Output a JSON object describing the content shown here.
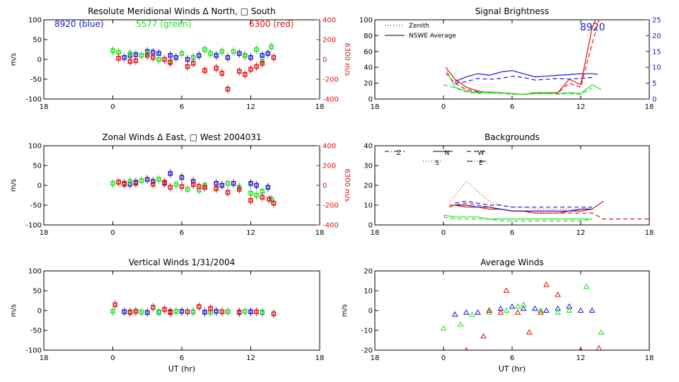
{
  "colors": {
    "blue": "#1a1acc",
    "green": "#22dd22",
    "red": "#dd1111",
    "axis": "#000000"
  },
  "chart_data": [
    {
      "type": "scatter",
      "title": "Resolute Meridional Winds Δ North, □ South",
      "ylabel": "m/s",
      "y2label": "6300 m/s",
      "xlim": [
        -6,
        18
      ],
      "ylim": [
        -100,
        100
      ],
      "y2lim": [
        -400,
        400
      ],
      "xticks": [
        "18",
        "0",
        "6",
        "12",
        "18"
      ],
      "yticks": [
        "100",
        "50",
        "0",
        "-50",
        "-100"
      ],
      "y2ticks": [
        "400",
        "200",
        "0",
        "-200",
        "-400"
      ],
      "annotations": [
        {
          "text": "8920 (blue)",
          "color": "blue"
        },
        {
          "text": "5577 (green)",
          "color": "green"
        },
        {
          "text": "6300 (red)",
          "color": "red"
        }
      ],
      "series": [
        {
          "name": "8920 (blue)",
          "color": "blue",
          "marker": "square",
          "x": [
            1,
            1.5,
            2,
            3,
            3.5,
            4,
            5,
            5.5,
            6.5,
            7,
            7.5,
            9,
            10,
            11,
            11.5,
            12,
            13,
            13.5
          ],
          "y": [
            5,
            10,
            12,
            20,
            18,
            15,
            10,
            5,
            0,
            5,
            10,
            10,
            5,
            15,
            10,
            5,
            10,
            15
          ]
        },
        {
          "name": "5577 (green)",
          "color": "green",
          "marker": "square",
          "x": [
            0,
            0.5,
            1.5,
            2.5,
            3,
            4,
            5,
            6,
            7,
            8,
            8.5,
            9.5,
            10.5,
            11.5,
            12.5,
            13,
            13.8
          ],
          "y": [
            22,
            18,
            15,
            10,
            15,
            0,
            -5,
            15,
            5,
            25,
            15,
            20,
            20,
            10,
            25,
            -5,
            32
          ]
        },
        {
          "name": "6300 (red)",
          "color": "red",
          "marker": "square",
          "x": [
            0.5,
            1.5,
            2,
            3,
            3.5,
            4.5,
            5,
            6.5,
            7,
            8,
            9,
            9.5,
            10,
            11,
            11.5,
            12,
            12.5,
            13,
            14
          ],
          "y": [
            3,
            -5,
            -3,
            10,
            5,
            0,
            -8,
            -18,
            -10,
            -28,
            -22,
            -35,
            -75,
            -30,
            -38,
            -25,
            -18,
            -10,
            5
          ]
        }
      ]
    },
    {
      "type": "line",
      "title": "Signal Brightness",
      "xlim": [
        -6,
        18
      ],
      "ylim": [
        0,
        100
      ],
      "y2lim": [
        0,
        25
      ],
      "xticks": [
        "18",
        "0",
        "6",
        "12",
        "18"
      ],
      "yticks": [
        "100",
        "80",
        "60",
        "40",
        "20",
        "0"
      ],
      "y2ticks": [
        "25",
        "20",
        "15",
        "10",
        "5",
        "0"
      ],
      "legend": [
        {
          "label": "Zenith",
          "style": "dotted"
        },
        {
          "label": "NSWE Average",
          "style": "solid"
        }
      ],
      "annotation": "8920",
      "series": [
        {
          "color": "blue",
          "style": "solid",
          "x": [
            1,
            2,
            3,
            4,
            5,
            6,
            7,
            8,
            9,
            10,
            11,
            12,
            13,
            13.5
          ],
          "y": [
            5.5,
            7,
            8,
            7.5,
            8.5,
            9,
            8,
            7,
            7.2,
            7.5,
            7.7,
            8,
            8,
            7.8
          ]
        },
        {
          "color": "blue",
          "style": "dashed",
          "x": [
            1,
            2,
            3,
            4,
            5,
            6,
            7,
            8,
            9,
            10,
            11,
            12,
            13
          ],
          "y": [
            5,
            5.5,
            6.5,
            6.2,
            6.5,
            7.2,
            6.8,
            6,
            6.2,
            6.5,
            6.3,
            6.5,
            6.8
          ]
        },
        {
          "color": "red",
          "style": "solid",
          "x": [
            0.2,
            1,
            2,
            3,
            4,
            5,
            6,
            7,
            8,
            9,
            10,
            11,
            12,
            13,
            13.6
          ],
          "y": [
            40,
            25,
            15,
            10,
            8,
            8,
            7,
            6,
            8,
            8,
            8,
            25,
            18,
            90,
            110
          ]
        },
        {
          "color": "red",
          "style": "dashed",
          "x": [
            0.2,
            1,
            2,
            3,
            4,
            5,
            6,
            7,
            8,
            9,
            10,
            11,
            12,
            13,
            13.6
          ],
          "y": [
            33,
            20,
            12,
            9,
            8,
            8,
            7,
            6,
            7,
            7,
            8,
            20,
            15,
            70,
            100
          ]
        },
        {
          "color": "green",
          "style": "solid",
          "x": [
            0.3,
            1,
            2,
            3,
            4,
            5,
            6,
            7,
            8,
            9,
            10,
            11,
            12,
            13,
            13.8
          ],
          "y": [
            35,
            15,
            10,
            8,
            9,
            8,
            7,
            6,
            8,
            8,
            7,
            8,
            7,
            18,
            12
          ]
        },
        {
          "color": "green",
          "style": "dashed",
          "x": [
            0,
            1,
            2,
            3,
            4,
            5,
            6,
            7,
            8,
            9,
            10,
            11,
            12,
            13
          ],
          "y": [
            18,
            14,
            9,
            7,
            8,
            7,
            6,
            6,
            7,
            7,
            6,
            7,
            6,
            14
          ]
        }
      ]
    },
    {
      "type": "scatter",
      "title": "Zonal Winds Δ East, □ West 2004031",
      "ylabel": "m/s",
      "y2label": "6300 m/s",
      "xlim": [
        -6,
        18
      ],
      "ylim": [
        -100,
        100
      ],
      "y2lim": [
        -400,
        400
      ],
      "xticks": [
        "18",
        "0",
        "6",
        "12",
        "18"
      ],
      "yticks": [
        "100",
        "50",
        "0",
        "-50",
        "-100"
      ],
      "y2ticks": [
        "400",
        "200",
        "0",
        "-200",
        "-400"
      ],
      "series": [
        {
          "name": "8920",
          "color": "blue",
          "marker": "square",
          "x": [
            1,
            1.5,
            2,
            3,
            3.5,
            4.5,
            5,
            6,
            7,
            8,
            9,
            9.5,
            10.5,
            11,
            12,
            12.5,
            13.5
          ],
          "y": [
            5,
            3,
            8,
            15,
            10,
            5,
            30,
            20,
            10,
            -5,
            5,
            0,
            5,
            -5,
            5,
            0,
            -5
          ]
        },
        {
          "name": "5577",
          "color": "green",
          "marker": "square",
          "x": [
            0,
            0.5,
            1.5,
            2.5,
            4,
            5.5,
            6.5,
            7.5,
            8,
            9,
            10,
            11,
            12,
            12.5,
            13,
            13.8
          ],
          "y": [
            5,
            8,
            10,
            12,
            15,
            2,
            -10,
            -12,
            0,
            -8,
            5,
            -5,
            -20,
            -25,
            -15,
            -35
          ]
        },
        {
          "name": "6300",
          "color": "red",
          "marker": "square",
          "x": [
            0.5,
            1,
            2,
            3.5,
            4.5,
            5,
            6,
            7,
            7.5,
            8,
            9,
            10,
            11,
            12,
            13,
            13.6,
            14
          ],
          "y": [
            8,
            3,
            5,
            3,
            8,
            -5,
            -3,
            2,
            -3,
            -5,
            -8,
            -18,
            -10,
            -38,
            -30,
            -35,
            -45
          ]
        }
      ]
    },
    {
      "type": "line",
      "title": "Backgrounds",
      "xlim": [
        -6,
        18
      ],
      "ylim": [
        0,
        40
      ],
      "xticks": [
        "18",
        "0",
        "6",
        "12",
        "18"
      ],
      "yticks": [
        "40",
        "30",
        "20",
        "10",
        "0"
      ],
      "legend": [
        {
          "label": "Z",
          "style": "dashdot"
        },
        {
          "label": "N",
          "style": "solid"
        },
        {
          "label": "W",
          "style": "dashed"
        },
        {
          "label": "S",
          "style": "dotted"
        },
        {
          "label": "E",
          "style": "dashdotted"
        }
      ],
      "series": [
        {
          "color": "red",
          "style": "dotted",
          "x": [
            0.5,
            1,
            2,
            3,
            4,
            5,
            6,
            7,
            8,
            9,
            10,
            11,
            12,
            13
          ],
          "y": [
            11,
            15,
            22,
            17,
            12,
            10,
            9,
            9,
            8,
            8,
            8,
            8,
            8,
            9
          ]
        },
        {
          "color": "red",
          "style": "solid",
          "x": [
            0.5,
            1,
            2,
            3,
            4,
            5,
            6,
            7,
            8,
            9,
            10,
            11,
            12,
            13,
            14
          ],
          "y": [
            10,
            10,
            9,
            9,
            8,
            8,
            7,
            7,
            6,
            6,
            6,
            7,
            7,
            8,
            12
          ]
        },
        {
          "color": "red",
          "style": "dashed",
          "x": [
            0.5,
            1,
            2,
            3,
            4,
            5,
            6,
            7,
            8,
            9,
            10,
            11,
            12,
            13,
            14,
            15,
            16,
            17,
            18
          ],
          "y": [
            9,
            10,
            11,
            10,
            9,
            8,
            7,
            7,
            6,
            6,
            6,
            6,
            6,
            6,
            3,
            3,
            3,
            3,
            3
          ]
        },
        {
          "color": "blue",
          "style": "dashed",
          "x": [
            1,
            2,
            3,
            4,
            5,
            6,
            7,
            8,
            9,
            10,
            11,
            12,
            13
          ],
          "y": [
            11,
            12,
            11,
            10,
            10,
            9,
            9,
            9,
            9,
            9,
            9,
            9,
            9
          ]
        },
        {
          "color": "blue",
          "style": "solid",
          "x": [
            1,
            2,
            3,
            4,
            5,
            6,
            7,
            8,
            9,
            10,
            11,
            12,
            13
          ],
          "y": [
            10,
            10,
            9,
            9,
            8,
            7,
            7,
            7,
            7,
            7,
            7,
            8,
            8
          ]
        },
        {
          "color": "green",
          "style": "solid",
          "x": [
            0,
            1,
            2,
            3,
            4,
            5,
            6,
            7,
            8,
            9,
            10,
            11,
            12,
            13
          ],
          "y": [
            5,
            4,
            4,
            4,
            3,
            3,
            3,
            3,
            3,
            3,
            3,
            3,
            3,
            3
          ]
        },
        {
          "color": "green",
          "style": "dashed",
          "x": [
            0,
            1,
            2,
            3,
            4,
            5,
            6,
            7,
            8,
            9,
            10,
            11,
            12,
            13
          ],
          "y": [
            4,
            3,
            3,
            3,
            3,
            2,
            2,
            2,
            2,
            2,
            2,
            2,
            2,
            3
          ]
        }
      ]
    },
    {
      "type": "scatter",
      "title": "Vertical Winds 1/31/2004",
      "ylabel": "m/s",
      "xlabel": "UT (hr)",
      "xlim": [
        -6,
        18
      ],
      "ylim": [
        -100,
        100
      ],
      "xticks": [
        "18",
        "0",
        "6",
        "12",
        "18"
      ],
      "yticks": [
        "100",
        "50",
        "0",
        "-50",
        "-100"
      ],
      "series": [
        {
          "name": "8920",
          "color": "blue",
          "marker": "square",
          "x": [
            1,
            2,
            3,
            4,
            5,
            6,
            7,
            8,
            9,
            10,
            11,
            12,
            13
          ],
          "y": [
            -3,
            -2,
            -5,
            -4,
            -3,
            -2,
            -3,
            -4,
            -2,
            -3,
            -4,
            -3,
            -5
          ]
        },
        {
          "name": "5577",
          "color": "green",
          "marker": "square",
          "x": [
            0,
            1.5,
            2.5,
            4,
            5.5,
            7,
            8.5,
            10,
            11.5,
            13
          ],
          "y": [
            -2,
            -3,
            -4,
            -3,
            -2,
            -3,
            -4,
            -3,
            -2,
            -4
          ]
        },
        {
          "name": "6300",
          "color": "red",
          "marker": "square",
          "x": [
            0.2,
            1.5,
            2,
            3.5,
            4.5,
            5,
            6.5,
            7.5,
            8.5,
            9.5,
            11,
            12.5,
            14
          ],
          "y": [
            15,
            -5,
            -2,
            8,
            3,
            -5,
            -3,
            10,
            5,
            -3,
            -5,
            -3,
            -8
          ]
        }
      ]
    },
    {
      "type": "scatter",
      "title": "Average Winds",
      "ylabel": "m/s",
      "xlabel": "UT (hr)",
      "xlim": [
        -6,
        18
      ],
      "ylim": [
        -20,
        20
      ],
      "xticks": [
        "18",
        "0",
        "6",
        "12",
        "18"
      ],
      "yticks": [
        "20",
        "10",
        "0",
        "-10",
        "-20"
      ],
      "series": [
        {
          "name": "8920",
          "color": "blue",
          "marker": "triangle",
          "x": [
            1,
            2,
            3,
            4,
            5,
            6,
            7,
            8,
            9,
            10,
            11,
            12,
            13
          ],
          "y": [
            -2,
            -1,
            -1,
            0,
            1,
            2,
            1,
            1,
            0,
            1,
            2,
            0,
            0
          ]
        },
        {
          "name": "5577",
          "color": "green",
          "marker": "triangle",
          "x": [
            0,
            1.5,
            2.5,
            4,
            5.5,
            6.5,
            7,
            8.5,
            10,
            11,
            12.5,
            13.8
          ],
          "y": [
            -9,
            -7,
            -2,
            -1,
            0,
            2,
            3,
            0,
            -1,
            0,
            12,
            -11
          ]
        },
        {
          "name": "6300",
          "color": "red",
          "marker": "triangle",
          "x": [
            2,
            3.5,
            4,
            5,
            5.5,
            6.5,
            7.5,
            8.5,
            9,
            10,
            12,
            13.6
          ],
          "y": [
            -20,
            -13,
            0,
            -1,
            10,
            -1,
            -11,
            -1,
            13,
            8,
            -20,
            -19
          ]
        }
      ]
    }
  ]
}
